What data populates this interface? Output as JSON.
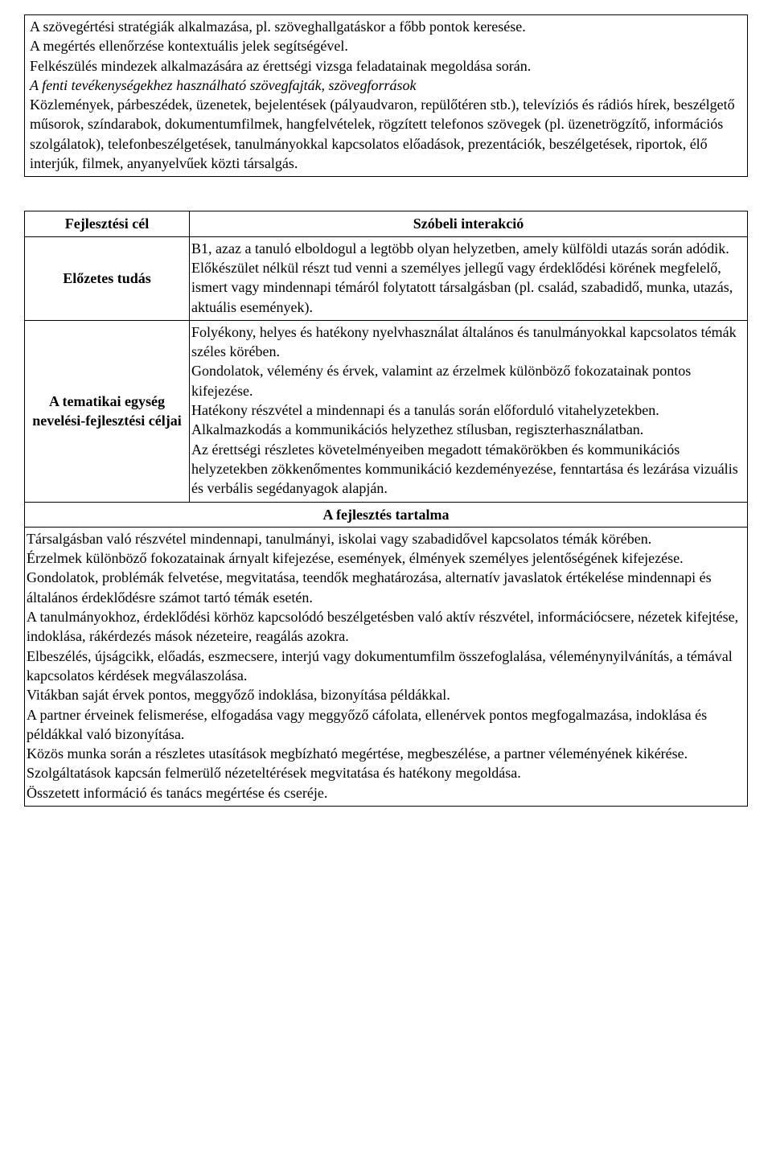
{
  "table1": {
    "para1": "A szövegértési stratégiák alkalmazása, pl. szöveghallgatáskor a főbb pontok keresése.",
    "para2": "A megértés ellenőrzése kontextuális jelek segítségével.",
    "para3": "Felkészülés mindezek alkalmazására az érettségi vizsga feladatainak megoldása során.",
    "italic_line": "A fenti tevékenységekhez használható szövegfajták, szövegforrások",
    "para4": "Közlemények, párbeszédek, üzenetek, bejelentések (pályaudvaron, repülőtéren stb.), televíziós és rádiós hírek, beszélgető műsorok, színdarabok, dokumentumfilmek, hangfelvételek, rögzített telefonos szövegek (pl. üzenetrögzítő, információs szolgálatok), telefonbeszélgetések, tanulmányokkal kapcsolatos előadások, prezentációk, beszélgetések, riportok, élő interjúk, filmek, anyanyelvűek közti társalgás."
  },
  "table2": {
    "header_left": "Fejlesztési cél",
    "header_right": "Szóbeli interakció",
    "row1_label": "Előzetes tudás",
    "row1_p1": "B1, azaz a tanuló elboldogul a legtöbb olyan helyzetben, amely külföldi utazás során adódik.",
    "row1_p2": "Előkészület nélkül részt tud venni a személyes jellegű vagy érdeklődési körének megfelelő, ismert vagy mindennapi témáról folytatott társalgásban (pl. család, szabadidő, munka, utazás, aktuális események).",
    "row2_label": "A tematikai egység nevelési-fejlesztési céljai",
    "row2_p1": "Folyékony, helyes és hatékony nyelvhasználat általános és tanulmányokkal kapcsolatos témák széles körében.",
    "row2_p2": "Gondolatok, vélemény és érvek, valamint az érzelmek különböző fokozatainak pontos kifejezése.",
    "row2_p3": "Hatékony részvétel a mindennapi és a tanulás során előforduló vitahelyzetekben.",
    "row2_p4": "Alkalmazkodás a kommunikációs helyzethez stílusban, regiszterhasználatban.",
    "row2_p5": "Az érettségi részletes követelményeiben megadott témakörökben és kommunikációs helyzetekben zökkenőmentes kommunikáció kezdeményezése, fenntartása és lezárása vizuális és verbális segédanyagok alapján.",
    "section_title": "A fejlesztés tartalma",
    "body_p1": "Társalgásban való részvétel mindennapi, tanulmányi, iskolai vagy szabadidővel kapcsolatos témák körében.",
    "body_p2": "Érzelmek különböző fokozatainak árnyalt kifejezése, események, élmények személyes jelentőségének kifejezése.",
    "body_p3": "Gondolatok, problémák felvetése, megvitatása, teendők meghatározása, alternatív javaslatok értékelése mindennapi és általános érdeklődésre számot tartó témák esetén.",
    "body_p4": "A tanulmányokhoz, érdeklődési körhöz kapcsolódó beszélgetésben való aktív részvétel, információcsere, nézetek kifejtése, indoklása, rákérdezés mások nézeteire, reagálás azokra.",
    "body_p5": "Elbeszélés, újságcikk, előadás, eszmecsere, interjú vagy dokumentumfilm összefoglalása, véleménynyilvánítás, a témával kapcsolatos kérdések megválaszolása.",
    "body_p6": "Vitákban saját érvek pontos, meggyőző indoklása, bizonyítása példákkal.",
    "body_p7": "A partner érveinek felismerése, elfogadása vagy meggyőző cáfolata, ellenérvek pontos megfogalmazása, indoklása és példákkal való bizonyítása.",
    "body_p8": "Közös munka során a részletes utasítások megbízható megértése, megbeszélése, a partner véleményének kikérése.",
    "body_p9": "Szolgáltatások kapcsán felmerülő nézeteltérések megvitatása és hatékony megoldása.",
    "body_p10": "Összetett információ és tanács megértése és cseréje."
  }
}
